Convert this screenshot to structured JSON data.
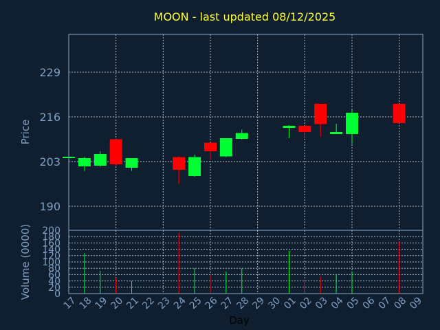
{
  "chart_data": {
    "type": "candlestick",
    "title": "MOON - last updated 08/12/2025",
    "xlabel": "Day",
    "colors": {
      "up": "#00ff33",
      "down": "#ff0000",
      "background": "#0f1f30",
      "text": "#7f9fc2",
      "title": "#ffff33"
    },
    "price_panel": {
      "ylabel": "Price",
      "yticks": [
        190,
        203,
        216,
        229
      ],
      "ylim": [
        183,
        240
      ],
      "grid": true
    },
    "volume_panel": {
      "ylabel": "Volume (0000)",
      "yticks": [
        0,
        20,
        40,
        60,
        80,
        100,
        120,
        140,
        160,
        180,
        200
      ],
      "ylim": [
        0,
        200
      ],
      "grid": true
    },
    "x_tick_labels": [
      "17",
      "18",
      "19",
      "20",
      "21",
      "22",
      "23",
      "24",
      "25",
      "26",
      "27",
      "28",
      "29",
      "30",
      "01",
      "02",
      "03",
      "04",
      "05",
      "06",
      "07",
      "08",
      "09"
    ],
    "candles": [
      {
        "day": "17",
        "open": 204.2,
        "close": 204.4,
        "high": 204.6,
        "low": 204.0,
        "volume": 0
      },
      {
        "day": "18",
        "open": 201.6,
        "close": 204.0,
        "high": 204.4,
        "low": 200.3,
        "volume": 128
      },
      {
        "day": "19",
        "open": 201.8,
        "close": 205.2,
        "high": 206.0,
        "low": 201.5,
        "volume": 72
      },
      {
        "day": "20",
        "open": 209.5,
        "close": 202.2,
        "high": 209.5,
        "low": 201.8,
        "volume": 50
      },
      {
        "day": "21",
        "open": 201.2,
        "close": 204.0,
        "high": 204.0,
        "low": 200.3,
        "volume": 40
      },
      {
        "day": "24",
        "open": 204.3,
        "close": 200.6,
        "high": 204.5,
        "low": 196.5,
        "volume": 192
      },
      {
        "day": "25",
        "open": 198.8,
        "close": 204.3,
        "high": 205.0,
        "low": 198.6,
        "volume": 80
      },
      {
        "day": "26",
        "open": 208.5,
        "close": 206.0,
        "high": 208.5,
        "low": 203.5,
        "volume": 60
      },
      {
        "day": "27",
        "open": 204.5,
        "close": 209.8,
        "high": 209.8,
        "low": 204.3,
        "volume": 70
      },
      {
        "day": "28",
        "open": 209.6,
        "close": 211.3,
        "high": 212.3,
        "low": 209.4,
        "volume": 80
      },
      {
        "day": "01",
        "open": 212.8,
        "close": 213.4,
        "high": 213.6,
        "low": 209.8,
        "volume": 135
      },
      {
        "day": "02",
        "open": 213.4,
        "close": 211.6,
        "high": 213.4,
        "low": 209.5,
        "volume": 45
      },
      {
        "day": "03",
        "open": 219.8,
        "close": 213.9,
        "high": 219.8,
        "low": 210.2,
        "volume": 55
      },
      {
        "day": "04",
        "open": 211.0,
        "close": 211.6,
        "high": 214.0,
        "low": 211.0,
        "volume": 60
      },
      {
        "day": "05",
        "open": 211.0,
        "close": 217.2,
        "high": 218.0,
        "low": 208.2,
        "volume": 70
      },
      {
        "day": "08",
        "open": 219.8,
        "close": 214.2,
        "high": 219.8,
        "low": 214.2,
        "volume": 165
      }
    ]
  }
}
